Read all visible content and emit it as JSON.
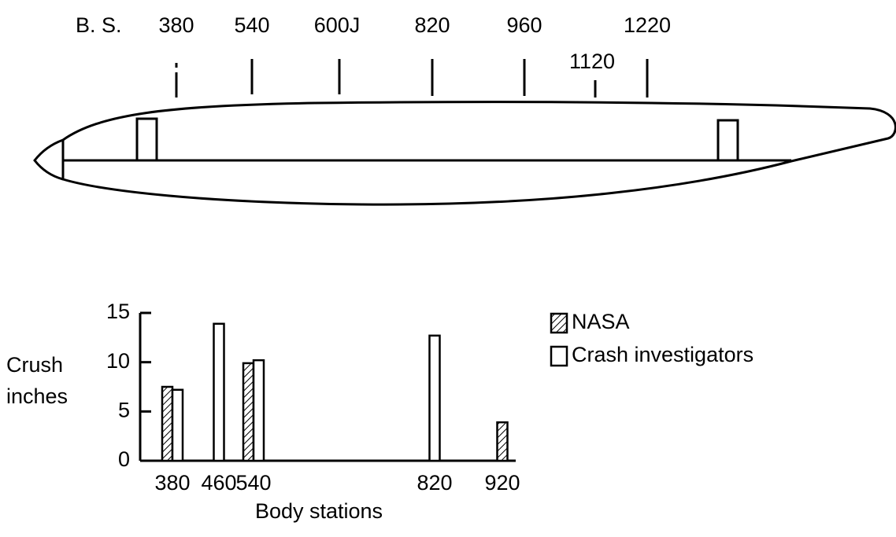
{
  "fuselage": {
    "label": "B. S.",
    "stations": [
      "380",
      "540",
      "600J",
      "820",
      "960",
      "1120",
      "1220"
    ]
  },
  "chart_data": {
    "type": "bar",
    "y_label": "Crush inches",
    "x_label": "Body stations",
    "categories": [
      "380",
      "460",
      "540",
      "820",
      "920"
    ],
    "series": [
      {
        "name": "NASA",
        "color": "#000000",
        "pattern": "hatch",
        "values": [
          7.5,
          null,
          9.9,
          null,
          3.9
        ]
      },
      {
        "name": "Crash investigators",
        "color": "#000000",
        "pattern": "none",
        "values": [
          7.2,
          13.9,
          10.2,
          12.7,
          null
        ]
      }
    ],
    "ylim": [
      0,
      15
    ],
    "yticks": [
      0,
      5,
      10,
      15
    ],
    "grid": false,
    "legend": "top-right"
  }
}
